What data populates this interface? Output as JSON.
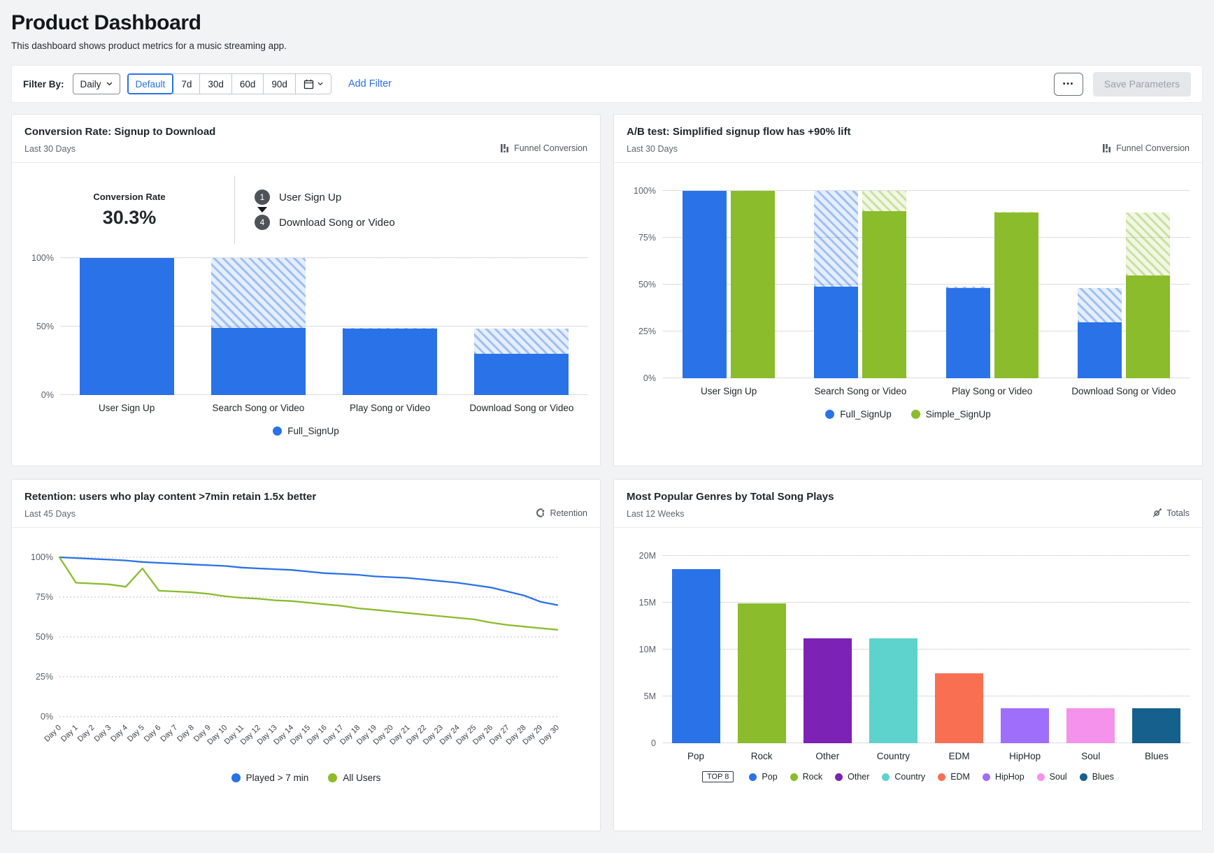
{
  "page": {
    "title": "Product Dashboard",
    "subtitle": "This dashboard shows product metrics for a music streaming app."
  },
  "filter_bar": {
    "label": "Filter By:",
    "frequency_value": "Daily",
    "presets": [
      "Default",
      "7d",
      "30d",
      "60d",
      "90d"
    ],
    "selected_preset": "Default",
    "add_filter_label": "Add Filter",
    "overflow_label": "•••",
    "save_label": "Save Parameters",
    "accent_color": "#2a72e8"
  },
  "panels": [
    {
      "title": "Conversion Rate: Signup to Download",
      "subtitle": "Last 30 Days",
      "type_label": "Funnel Conversion",
      "type_icon": "funnel-conversion-icon",
      "summary_label": "Conversion Rate",
      "summary_value": "30.3%",
      "funnel_steps": [
        {
          "num": "1",
          "label": "User Sign Up"
        },
        {
          "num": "4",
          "label": "Download Song or Video"
        }
      ]
    },
    {
      "title": "A/B test: Simplified signup flow has +90% lift",
      "subtitle": "Last 30 Days",
      "type_label": "Funnel Conversion",
      "type_icon": "funnel-conversion-icon"
    },
    {
      "title": "Retention: users who play content >7min retain 1.5x better",
      "subtitle": "Last 45 Days",
      "type_label": "Retention",
      "type_icon": "retention-icon"
    },
    {
      "title": "Most Popular Genres by Total Song Plays",
      "subtitle": "Last 12 Weeks",
      "type_label": "Totals",
      "type_icon": "totals-icon"
    }
  ],
  "chart_data": [
    {
      "type": "bar",
      "variant": "funnel",
      "title": "Conversion Rate: Signup to Download",
      "categories": [
        "User Sign Up",
        "Search Song or Video",
        "Play Song or Video",
        "Download Song or Video"
      ],
      "series": [
        {
          "name": "Full_SignUp",
          "color": "#2a72e8",
          "values": [
            100,
            49,
            48.5,
            30
          ],
          "dropoff_top": [
            100,
            100,
            49,
            48.5
          ]
        }
      ],
      "yticks": [
        "0%",
        "50%",
        "100%"
      ],
      "ylim": [
        0,
        100
      ],
      "grid": "dotted-horizontal",
      "legend_position": "bottom"
    },
    {
      "type": "bar",
      "variant": "grouped-funnel",
      "title": "A/B test: Simplified signup flow has +90% lift",
      "categories": [
        "User Sign Up",
        "Search Song or Video",
        "Play Song or Video",
        "Download Song or Video"
      ],
      "series": [
        {
          "name": "Full_SignUp",
          "color": "#2a72e8",
          "values": [
            100,
            49,
            48,
            30
          ],
          "dropoff_top": [
            100,
            100,
            49,
            48
          ]
        },
        {
          "name": "Simple_SignUp",
          "color": "#8abc2b",
          "values": [
            100,
            89,
            88.5,
            55
          ],
          "dropoff_top": [
            100,
            100,
            89,
            88.5
          ]
        }
      ],
      "yticks": [
        "0%",
        "25%",
        "50%",
        "75%",
        "100%"
      ],
      "ylim": [
        0,
        100
      ],
      "grid": "dotted-horizontal",
      "legend_position": "bottom"
    },
    {
      "type": "line",
      "title": "Retention: users who play content >7min retain 1.5x better",
      "x": [
        "Day 0",
        "Day 1",
        "Day 2",
        "Day 3",
        "Day 4",
        "Day 5",
        "Day 6",
        "Day 7",
        "Day 8",
        "Day 9",
        "Day 10",
        "Day 11",
        "Day 12",
        "Day 13",
        "Day 14",
        "Day 15",
        "Day 16",
        "Day 17",
        "Day 18",
        "Day 19",
        "Day 20",
        "Day 21",
        "Day 22",
        "Day 23",
        "Day 24",
        "Day 25",
        "Day 26",
        "Day 27",
        "Day 28",
        "Day 29",
        "Day 30"
      ],
      "series": [
        {
          "name": "Played > 7 min",
          "color": "#2a72e8",
          "values": [
            100,
            99.5,
            99,
            98.5,
            98,
            97,
            96.5,
            96,
            95.5,
            95,
            94.5,
            93.5,
            93,
            92.5,
            92,
            91,
            90,
            89.5,
            89,
            88,
            87.5,
            87,
            86,
            85,
            84,
            82.5,
            81,
            78.5,
            76,
            72,
            70
          ]
        },
        {
          "name": "All Users",
          "color": "#8abc2b",
          "values": [
            100,
            84,
            83.5,
            83,
            81.5,
            93,
            79,
            78.5,
            78,
            77,
            75.5,
            74.5,
            74,
            73,
            72.5,
            71.5,
            70.5,
            69.5,
            68,
            67,
            66,
            65,
            64,
            63,
            62,
            61,
            59,
            57.5,
            56.5,
            55.5,
            54.5
          ]
        }
      ],
      "yticks": [
        "0%",
        "25%",
        "50%",
        "75%",
        "100%"
      ],
      "ylim": [
        0,
        100
      ],
      "grid": "dotted-horizontal",
      "legend_position": "bottom"
    },
    {
      "type": "bar",
      "variant": "simple",
      "title": "Most Popular Genres by Total Song Plays",
      "categories": [
        "Pop",
        "Rock",
        "Other",
        "Country",
        "EDM",
        "HipHop",
        "Soul",
        "Blues"
      ],
      "values": [
        18.6,
        14.9,
        11.2,
        11.2,
        7.5,
        3.7,
        3.7,
        3.7
      ],
      "unit": "M",
      "colors": [
        "#2a72e8",
        "#8abc2b",
        "#7c22b4",
        "#5ed2cd",
        "#f96f52",
        "#9f6efb",
        "#f492ec",
        "#16608e"
      ],
      "yticks": [
        "0",
        "5M",
        "10M",
        "15M",
        "20M"
      ],
      "ylim": [
        0,
        20
      ],
      "grid": "dotted-horizontal",
      "legend_badge": "TOP 8",
      "legend_position": "bottom"
    }
  ]
}
